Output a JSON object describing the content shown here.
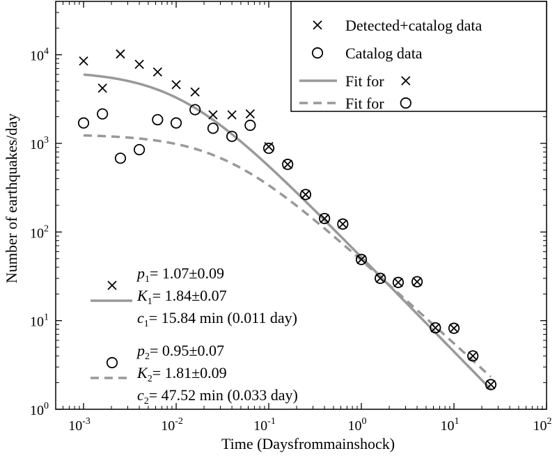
{
  "chart_data": {
    "type": "scatter",
    "scale": "log-log",
    "xlabel": "Time (Daysfrommainshock)",
    "ylabel": "Number of earthquakes/day",
    "xlim": [
      0.0005,
      100
    ],
    "ylim": [
      1,
      40000
    ],
    "x_ticks": [
      {
        "value": 0.001,
        "base": "10",
        "exp": "-3"
      },
      {
        "value": 0.01,
        "base": "10",
        "exp": "-2"
      },
      {
        "value": 0.1,
        "base": "10",
        "exp": "-1"
      },
      {
        "value": 1,
        "base": "10",
        "exp": "0"
      },
      {
        "value": 10,
        "base": "10",
        "exp": "1"
      },
      {
        "value": 100,
        "base": "10",
        "exp": "2"
      }
    ],
    "y_ticks": [
      {
        "value": 1,
        "base": "10",
        "exp": "0"
      },
      {
        "value": 10,
        "base": "10",
        "exp": "1"
      },
      {
        "value": 100,
        "base": "10",
        "exp": "2"
      },
      {
        "value": 1000,
        "base": "10",
        "exp": "3"
      },
      {
        "value": 10000,
        "base": "10",
        "exp": "4"
      }
    ],
    "series": [
      {
        "name": "Detected+catalog data",
        "marker": "x",
        "points": [
          [
            0.001,
            8500
          ],
          [
            0.0016,
            4200
          ],
          [
            0.0025,
            10200
          ],
          [
            0.004,
            7800
          ],
          [
            0.0063,
            6400
          ],
          [
            0.01,
            4600
          ],
          [
            0.016,
            3800
          ],
          [
            0.025,
            2100
          ],
          [
            0.04,
            2100
          ],
          [
            0.063,
            2150
          ],
          [
            0.1,
            920
          ],
          [
            0.16,
            580
          ],
          [
            0.25,
            265
          ],
          [
            0.4,
            142
          ],
          [
            0.63,
            123
          ],
          [
            1.0,
            49
          ],
          [
            1.6,
            30
          ],
          [
            2.5,
            27
          ],
          [
            4.0,
            27.5
          ],
          [
            6.3,
            8.3
          ],
          [
            10.0,
            8.2
          ],
          [
            16.0,
            4.0
          ],
          [
            25.0,
            1.9
          ]
        ]
      },
      {
        "name": "Catalog data",
        "marker": "o",
        "points": [
          [
            0.001,
            1700
          ],
          [
            0.0016,
            2150
          ],
          [
            0.0025,
            680
          ],
          [
            0.004,
            850
          ],
          [
            0.0063,
            1850
          ],
          [
            0.01,
            1700
          ],
          [
            0.016,
            2400
          ],
          [
            0.025,
            1480
          ],
          [
            0.04,
            1200
          ],
          [
            0.063,
            1600
          ],
          [
            0.1,
            880
          ],
          [
            0.16,
            580
          ],
          [
            0.25,
            265
          ],
          [
            0.4,
            142
          ],
          [
            0.63,
            123
          ],
          [
            1.0,
            49
          ],
          [
            1.6,
            30
          ],
          [
            2.5,
            27
          ],
          [
            4.0,
            27.5
          ],
          [
            6.3,
            8.3
          ],
          [
            10.0,
            8.2
          ],
          [
            16.0,
            4.0
          ],
          [
            25.0,
            1.9
          ]
        ]
      },
      {
        "name": "Fit for ×",
        "style": "solid",
        "color": "#999999",
        "model": "omori",
        "K": 1.84,
        "c": 0.011,
        "p": 1.07,
        "x_range": [
          0.001,
          25
        ]
      },
      {
        "name": "Fit for ○",
        "style": "dashed",
        "color": "#999999",
        "model": "omori",
        "K": 1.81,
        "c": 0.033,
        "p": 0.95,
        "x_range": [
          0.001,
          25
        ]
      }
    ],
    "legend": {
      "position": "top-right",
      "entries": [
        {
          "label": "Detected+catalog data",
          "kind": "marker-x"
        },
        {
          "label": "Catalog data",
          "kind": "marker-o"
        },
        {
          "label": "Fit for",
          "kind": "line-solid",
          "symbol": "×"
        },
        {
          "label": "Fit for",
          "kind": "line-dashed",
          "symbol": "○"
        }
      ]
    },
    "annotations": [
      {
        "kind": "fit-x",
        "p": {
          "sym": "p",
          "sub": "1",
          "val": "= 1.07±0.09"
        },
        "K": {
          "sym": "K",
          "sub": "1",
          "val": "= 1.84±0.07"
        },
        "c": {
          "sym": "c",
          "sub": "1",
          "val": "= 15.84 min (0.011 day)"
        }
      },
      {
        "kind": "fit-o",
        "p": {
          "sym": "p",
          "sub": "2",
          "val": "= 0.95±0.07"
        },
        "K": {
          "sym": "K",
          "sub": "2",
          "val": "= 1.81±0.09"
        },
        "c": {
          "sym": "c",
          "sub": "2",
          "val": "= 47.52 min (0.033 day)"
        }
      }
    ]
  }
}
